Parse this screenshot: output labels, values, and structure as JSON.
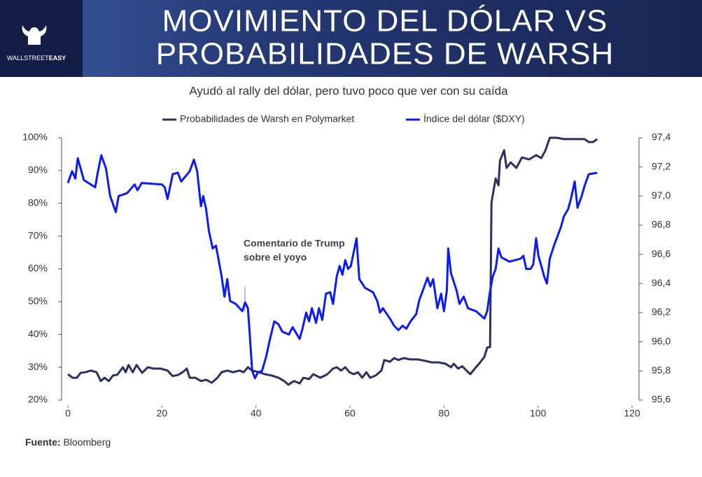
{
  "brand": [
    "WALLSTREET",
    "EASY"
  ],
  "chart_data": {
    "type": "line",
    "title": [
      "MOVIMIENTO DEL DÓLAR VS",
      "PROBABILIDADES DE WARSH"
    ],
    "subtitle": "Ayudó al rally del dólar, pero tuvo poco que ver con su caída",
    "annotation": [
      "Comentario de Trump",
      "sobre el yoyo"
    ],
    "xlim": [
      0,
      120
    ],
    "xticks": [
      0,
      20,
      40,
      60,
      80,
      100,
      120
    ],
    "ylim": [
      20,
      100
    ],
    "yticks": [
      {
        "value": 20,
        "label": "20%"
      },
      {
        "value": 30,
        "label": "30%"
      },
      {
        "value": 40,
        "label": "40%"
      },
      {
        "value": 50,
        "label": "50%"
      },
      {
        "value": 60,
        "label": "60%"
      },
      {
        "value": 70,
        "label": "70%"
      },
      {
        "value": 80,
        "label": "80%"
      },
      {
        "value": 90,
        "label": "90%"
      },
      {
        "value": 100,
        "label": "100%"
      }
    ],
    "y2lim": [
      95.6,
      97.4
    ],
    "y2ticks": [
      {
        "value": 95.6,
        "label": "95,6"
      },
      {
        "value": 95.8,
        "label": "95,8"
      },
      {
        "value": 96.0,
        "label": "96,0"
      },
      {
        "value": 96.2,
        "label": "96,2"
      },
      {
        "value": 96.4,
        "label": "96,4"
      },
      {
        "value": 96.6,
        "label": "96,6"
      },
      {
        "value": 96.8,
        "label": "96,8"
      },
      {
        "value": 97.0,
        "label": "97,0"
      },
      {
        "value": 97.2,
        "label": "97,2"
      },
      {
        "value": 97.4,
        "label": "97,4"
      }
    ],
    "grid": false,
    "series": [
      {
        "name": "Probabilidades de Warsh en Polymarket",
        "color": "#2b2f61",
        "x": [
          0,
          1.0,
          1.9,
          2.7,
          3.7,
          4.9,
          6.1,
          7.0,
          7.8,
          8.7,
          9.6,
          10.5,
          11.7,
          12.3,
          12.9,
          13.8,
          14.6,
          15.8,
          17.0,
          18.2,
          19.7,
          21.2,
          22.3,
          23.5,
          24.4,
          25.3,
          25.9,
          27.1,
          28.3,
          29.4,
          30.6,
          31.8,
          32.7,
          33.9,
          35.1,
          36.5,
          37.4,
          38.3,
          39.2,
          40.7,
          41.9,
          43.3,
          44.8,
          46.0,
          46.9,
          48.1,
          49.3,
          50.1,
          51.3,
          52.2,
          53.7,
          55.2,
          56.4,
          57.2,
          58.1,
          59.0,
          59.9,
          60.8,
          61.7,
          62.6,
          63.5,
          64.3,
          65.5,
          66.7,
          67.3,
          68.5,
          69.4,
          70.3,
          71.4,
          72.9,
          74.4,
          75.9,
          77.4,
          78.8,
          80.3,
          81.5,
          82.1,
          83.0,
          83.9,
          84.8,
          85.6,
          86.8,
          87.7,
          88.6,
          89.2,
          89.8,
          90.1,
          91.0,
          91.6,
          91.9,
          92.8,
          93.3,
          94.2,
          95.4,
          96.6,
          98.1,
          99.6,
          100.7,
          101.6,
          102.5,
          104.0,
          105.5,
          109.9,
          110.8,
          111.7,
          112.6
        ],
        "values": [
          27.9,
          26.8,
          26.8,
          28.3,
          28.5,
          29.0,
          28.5,
          25.8,
          26.8,
          25.8,
          27.5,
          27.7,
          30.0,
          28.5,
          30.7,
          28.5,
          30.7,
          28.3,
          30.0,
          29.6,
          29.6,
          29.0,
          27.3,
          27.7,
          28.5,
          29.6,
          26.8,
          26.8,
          25.8,
          26.2,
          25.3,
          26.8,
          28.5,
          29.0,
          28.5,
          29.0,
          28.5,
          30.0,
          29.0,
          28.5,
          27.9,
          27.5,
          26.8,
          25.8,
          24.7,
          25.8,
          25.1,
          26.8,
          26.4,
          27.9,
          26.8,
          27.9,
          29.6,
          30.0,
          29.0,
          30.0,
          28.5,
          27.9,
          28.5,
          26.8,
          28.5,
          26.8,
          27.5,
          29.0,
          32.2,
          31.7,
          32.8,
          32.2,
          32.8,
          32.4,
          32.4,
          32.0,
          31.5,
          31.5,
          31.1,
          30.0,
          31.1,
          29.6,
          30.3,
          29.0,
          27.9,
          30.0,
          31.5,
          33.2,
          36.0,
          36.2,
          80.2,
          87.6,
          85.5,
          93.0,
          96.2,
          90.8,
          92.5,
          90.8,
          94.0,
          93.4,
          94.7,
          93.8,
          96.2,
          100,
          100,
          99.6,
          99.6,
          98.7,
          98.7,
          99.6
        ]
      },
      {
        "name": "Índice del dólar ($DXY)",
        "color": "#0a1bf5",
        "axis": "y2",
        "x": [
          0,
          0.9,
          1.6,
          2.1,
          3.4,
          5.8,
          6.4,
          7.1,
          8.1,
          9.0,
          10.2,
          10.8,
          12.6,
          14.2,
          14.8,
          15.7,
          20.0,
          20.6,
          21.2,
          22.3,
          23.4,
          24.1,
          25.9,
          26.8,
          27.5,
          28.3,
          28.8,
          29.4,
          30.0,
          30.8,
          31.5,
          32.7,
          33.3,
          33.9,
          34.5,
          35.7,
          37.1,
          37.7,
          38.3,
          38.6,
          39.2,
          39.8,
          40.4,
          41.3,
          42.2,
          43.0,
          43.9,
          44.8,
          45.6,
          47.0,
          47.8,
          49.3,
          49.9,
          50.7,
          51.3,
          51.9,
          52.8,
          53.4,
          54.1,
          54.9,
          55.8,
          56.4,
          57.2,
          57.8,
          58.4,
          59.0,
          59.6,
          60.2,
          61.4,
          62.0,
          63.2,
          64.9,
          65.8,
          66.4,
          67.0,
          68.5,
          69.4,
          70.3,
          71.2,
          72.0,
          72.9,
          74.1,
          74.7,
          76.5,
          77.1,
          77.7,
          78.6,
          79.4,
          80.0,
          80.6,
          80.9,
          81.5,
          82.7,
          83.3,
          84.2,
          85.1,
          86.8,
          88.6,
          89.2,
          89.8,
          90.4,
          91.0,
          91.6,
          92.2,
          93.9,
          96.3,
          96.9,
          97.5,
          98.4,
          99.0,
          99.6,
          100.1,
          100.7,
          101.3,
          101.9,
          102.5,
          103.4,
          104.9,
          105.5,
          106.4,
          107.0,
          107.8,
          108.4,
          109.3,
          109.9,
          110.8,
          112.6
        ],
        "values": [
          97.09,
          97.17,
          97.12,
          97.26,
          97.11,
          97.06,
          97.17,
          97.28,
          97.19,
          97.0,
          96.89,
          97.0,
          97.02,
          97.08,
          97.04,
          97.09,
          97.08,
          97.06,
          96.98,
          97.15,
          97.16,
          97.1,
          97.17,
          97.25,
          97.17,
          96.93,
          97.0,
          96.91,
          96.76,
          96.64,
          96.66,
          96.45,
          96.31,
          96.43,
          96.28,
          96.26,
          96.21,
          96.27,
          96.23,
          96.09,
          95.8,
          95.75,
          95.79,
          95.8,
          95.9,
          96.02,
          96.14,
          96.12,
          96.07,
          96.05,
          96.1,
          96.02,
          96.09,
          96.2,
          96.14,
          96.23,
          96.13,
          96.23,
          96.15,
          96.33,
          96.34,
          96.26,
          96.45,
          96.52,
          96.46,
          96.56,
          96.5,
          96.52,
          96.71,
          96.43,
          96.37,
          96.34,
          96.28,
          96.2,
          96.23,
          96.16,
          96.11,
          96.08,
          96.11,
          96.09,
          96.14,
          96.19,
          96.28,
          96.44,
          96.38,
          96.43,
          96.23,
          96.33,
          96.21,
          96.35,
          96.64,
          96.47,
          96.35,
          96.26,
          96.31,
          96.23,
          96.21,
          96.16,
          96.21,
          96.35,
          96.45,
          96.5,
          96.64,
          96.58,
          96.55,
          96.57,
          96.59,
          96.5,
          96.5,
          96.53,
          96.71,
          96.59,
          96.52,
          96.45,
          96.4,
          96.57,
          96.66,
          96.79,
          96.86,
          96.91,
          96.98,
          97.1,
          96.92,
          97.0,
          97.07,
          97.15,
          97.16
        ]
      }
    ],
    "source_label": "Fuente:",
    "source": "Bloomberg"
  }
}
